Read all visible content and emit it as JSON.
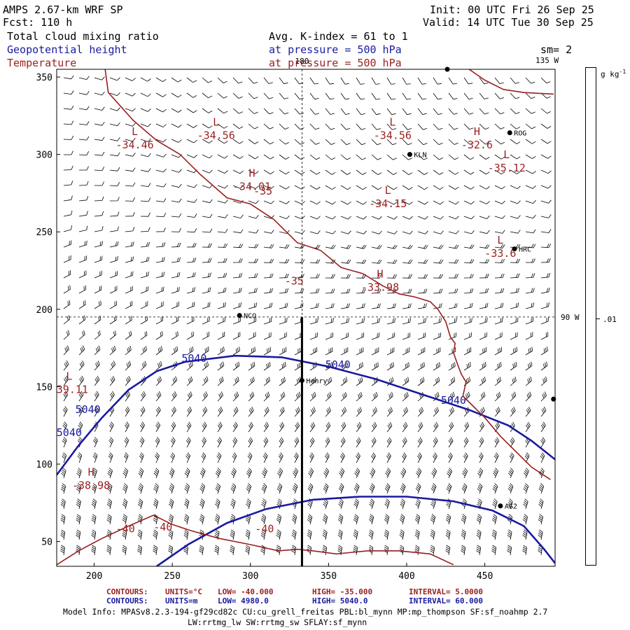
{
  "header": {
    "model": "AMPS 2.67-km WRF SP",
    "forecast": "Fcst:  110 h",
    "init": "Init: 00 UTC Fri 26 Sep 25",
    "valid": "Valid: 14 UTC Tue 30 Sep 25",
    "field1": "Total cloud mixing ratio",
    "field2": "Geopotential height",
    "field3": "Temperature",
    "avg": "Avg. K-index =  61 to   1",
    "pressure1": "at pressure =  500 hPa",
    "pressure2": "at pressure =  500 hPa",
    "smoothing": "sm= 2"
  },
  "colorbar": {
    "units": "g kg",
    "units_exp": "-1",
    "tick_label": ".01"
  },
  "footer": {
    "t1_label": "CONTOURS:",
    "t1_units": "UNITS=°C",
    "t1_low": "LOW= -40.000",
    "t1_high": "HIGH= -35.000",
    "t1_interval": "INTERVAL=   5.0000",
    "t2_label": "CONTOURS:",
    "t2_units": "UNITS=m",
    "t2_low": "LOW=  4980.0",
    "t2_high": "HIGH= 5040.0",
    "t2_interval": "INTERVAL=   60.000",
    "model_info": "Model Info: MPASv8.2.3-194-gf29cd82c CU:cu_grell_freitas PBL:bl_mynn MP:mp_thompson SF:sf_noahmp 2.7",
    "model_info2": "LW:rrtmg_lw SW:rrtmg_sw SFLAY:sf_mynn"
  },
  "colors": {
    "temperature": "#9a1f1f",
    "height": "#1a1aa0",
    "barbs": "#000000",
    "background": "#ffffff"
  },
  "chart_data": {
    "type": "contour",
    "title": "AMPS 2.67-km WRF SP 500 hPa",
    "xlim": [
      176,
      495
    ],
    "ylim": [
      34,
      355
    ],
    "xticks": [
      200,
      250,
      300,
      350,
      400,
      450
    ],
    "yticks": [
      50,
      100,
      150,
      200,
      250,
      300,
      350
    ],
    "crosshair": {
      "x": 333,
      "y": 195,
      "label_top": "180",
      "label_right": "90 W",
      "label_corner": "135 W"
    },
    "cross_section_line": {
      "x": 333,
      "y0": 34,
      "y1": 195
    },
    "stations": [
      {
        "name": "KLN",
        "x": 402,
        "y": 300
      },
      {
        "name": "ROG",
        "x": 466,
        "y": 314
      },
      {
        "name": "HRC",
        "x": 469,
        "y": 239
      },
      {
        "name": "NCO",
        "x": 293,
        "y": 196
      },
      {
        "name": "Henry",
        "x": 333,
        "y": 154
      },
      {
        "name": "AG2",
        "x": 460,
        "y": 73
      }
    ],
    "station_marks": [
      {
        "x": 426,
        "y": 355
      },
      {
        "x": 494,
        "y": 142
      }
    ],
    "height_contours": [
      {
        "name": "5040 m (upper)",
        "points": [
          [
            176,
            93
          ],
          [
            190,
            112
          ],
          [
            205,
            130
          ],
          [
            222,
            148
          ],
          [
            240,
            160
          ],
          [
            258,
            166
          ],
          [
            290,
            170
          ],
          [
            320,
            169
          ],
          [
            350,
            163
          ],
          [
            380,
            155
          ],
          [
            410,
            145
          ],
          [
            440,
            135
          ],
          [
            465,
            125
          ],
          [
            480,
            115
          ],
          [
            495,
            103
          ]
        ]
      },
      {
        "name": "4980 m (lower)",
        "points": [
          [
            240,
            34
          ],
          [
            260,
            48
          ],
          [
            285,
            62
          ],
          [
            310,
            71
          ],
          [
            340,
            77
          ],
          [
            370,
            79
          ],
          [
            400,
            79
          ],
          [
            430,
            76
          ],
          [
            455,
            70
          ],
          [
            475,
            60
          ],
          [
            488,
            45
          ],
          [
            495,
            36
          ]
        ]
      }
    ],
    "height_labels": [
      {
        "text": "5040",
        "x": 264,
        "y": 166
      },
      {
        "text": "5040",
        "x": 356,
        "y": 162
      },
      {
        "text": "5040",
        "x": 430,
        "y": 139
      },
      {
        "text": "5040",
        "x": 196,
        "y": 133
      },
      {
        "text": "5040",
        "x": 184,
        "y": 118
      }
    ],
    "temperature_contours": [
      {
        "name": "-35 C",
        "points": [
          [
            207,
            355
          ],
          [
            209,
            340
          ],
          [
            225,
            322
          ],
          [
            240,
            309
          ],
          [
            255,
            300
          ],
          [
            268,
            287
          ],
          [
            285,
            272
          ],
          [
            300,
            268
          ],
          [
            315,
            258
          ],
          [
            330,
            243
          ],
          [
            345,
            238
          ],
          [
            358,
            227
          ],
          [
            372,
            223
          ],
          [
            385,
            215
          ],
          [
            395,
            210
          ],
          [
            405,
            208
          ],
          [
            415,
            205
          ],
          [
            420,
            200
          ],
          [
            425,
            192
          ],
          [
            428,
            182
          ],
          [
            431,
            178
          ],
          [
            430,
            172
          ],
          [
            432,
            166
          ],
          [
            435,
            158
          ],
          [
            438,
            153
          ],
          [
            436,
            144
          ],
          [
            440,
            140
          ],
          [
            450,
            130
          ],
          [
            460,
            118
          ],
          [
            470,
            108
          ],
          [
            480,
            98
          ],
          [
            492,
            90
          ]
        ]
      },
      {
        "name": "-40 C (lower left)",
        "points": [
          [
            176,
            35
          ],
          [
            190,
            44
          ],
          [
            205,
            52
          ],
          [
            222,
            60
          ],
          [
            238,
            67
          ],
          [
            250,
            61
          ],
          [
            262,
            57
          ],
          [
            280,
            52
          ],
          [
            300,
            48
          ],
          [
            318,
            44
          ],
          [
            330,
            45
          ],
          [
            340,
            44
          ],
          [
            355,
            42
          ],
          [
            375,
            44
          ],
          [
            395,
            44
          ],
          [
            415,
            42
          ],
          [
            430,
            35
          ]
        ]
      },
      {
        "name": "coast (upper right)",
        "points": [
          [
            440,
            355
          ],
          [
            450,
            348
          ],
          [
            462,
            342
          ],
          [
            475,
            340
          ],
          [
            494,
            339
          ]
        ]
      }
    ],
    "temperature_labels": [
      {
        "text": "-35",
        "x": 308,
        "y": 274
      },
      {
        "text": "-35",
        "x": 328,
        "y": 216
      },
      {
        "text": "-40",
        "x": 220,
        "y": 56
      },
      {
        "text": "-40",
        "x": 244,
        "y": 57
      },
      {
        "text": "-40",
        "x": 309,
        "y": 56
      }
    ],
    "extrema": [
      {
        "type": "L",
        "value": "-34.46",
        "x": 226,
        "y": 308
      },
      {
        "type": "L",
        "value": "-34.56",
        "x": 278,
        "y": 314
      },
      {
        "type": "L",
        "value": "-34.56",
        "x": 391,
        "y": 314
      },
      {
        "type": "H",
        "value": "-32.6",
        "x": 445,
        "y": 308
      },
      {
        "type": "L",
        "value": "-35.12",
        "x": 464,
        "y": 293
      },
      {
        "type": "H",
        "value": "-34.01",
        "x": 301,
        "y": 281
      },
      {
        "type": "L",
        "value": "-34.15",
        "x": 388,
        "y": 270
      },
      {
        "type": "L",
        "value": "-33.6",
        "x": 460,
        "y": 238
      },
      {
        "type": "H",
        "value": "-33.98",
        "x": 383,
        "y": 216
      },
      {
        "type": "L",
        "value": "-39.11",
        "x": 184,
        "y": 150
      },
      {
        "type": "H",
        "value": "-38.98",
        "x": 198,
        "y": 88
      }
    ]
  }
}
